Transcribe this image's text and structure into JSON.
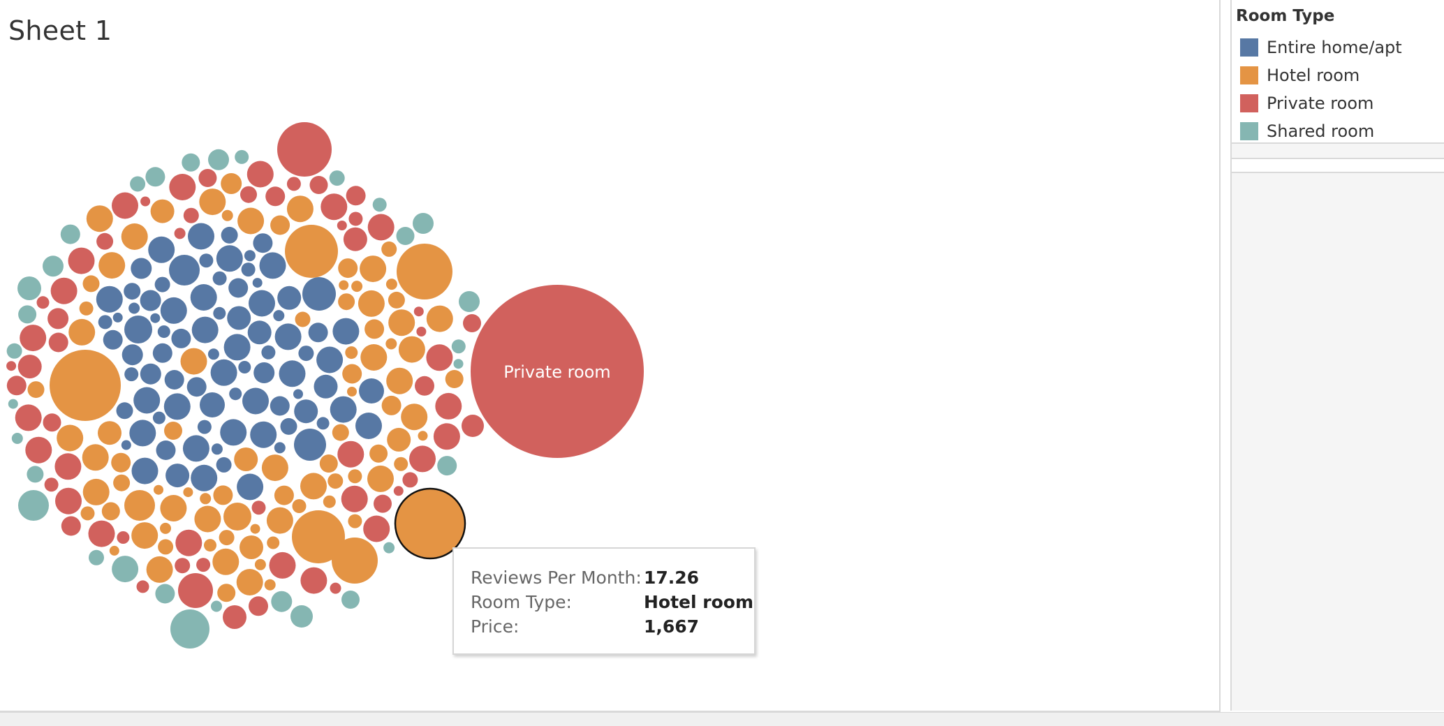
{
  "sheet": {
    "title": "Sheet 1"
  },
  "legend": {
    "title": "Room Type",
    "items": [
      {
        "label": "Entire home/apt",
        "color": "#5778a4"
      },
      {
        "label": "Hotel room",
        "color": "#e49444"
      },
      {
        "label": "Private room",
        "color": "#d1615d"
      },
      {
        "label": "Shared room",
        "color": "#85b6b2"
      }
    ]
  },
  "tooltip": {
    "rows": [
      {
        "label": "Reviews Per Month:",
        "value": "17.26"
      },
      {
        "label": "Room Type:",
        "value": "Hotel room"
      },
      {
        "label": "Price:",
        "value": "1,667"
      }
    ]
  },
  "chart_data": {
    "type": "packed-bubble",
    "color_by": "Room Type",
    "size_by": "Price",
    "categories": [
      "Entire home/apt",
      "Hotel room",
      "Private room",
      "Shared room"
    ],
    "colors": {
      "Entire home/apt": "#5778a4",
      "Hotel room": "#e49444",
      "Private room": "#d1615d",
      "Shared room": "#85b6b2"
    },
    "labeled_bubble": {
      "label": "Private room",
      "category": "Private room"
    },
    "highlighted_mark": {
      "room_type": "Hotel room",
      "reviews_per_month": 17.26,
      "price": 1667
    }
  }
}
